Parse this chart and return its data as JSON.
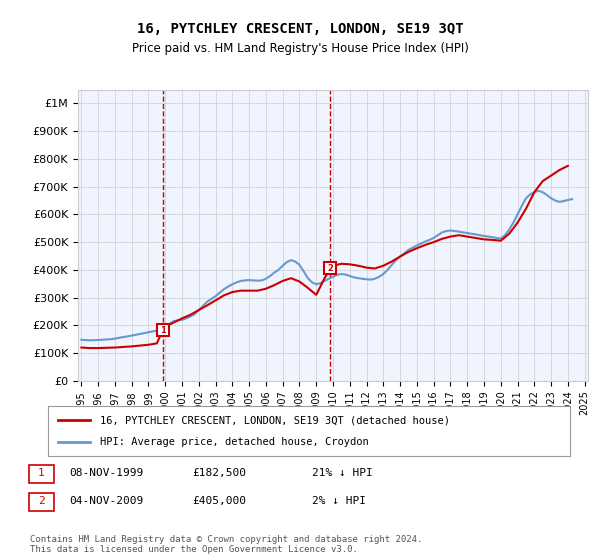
{
  "title": "16, PYTCHLEY CRESCENT, LONDON, SE19 3QT",
  "subtitle": "Price paid vs. HM Land Registry's House Price Index (HPI)",
  "xlabel": "",
  "ylabel": "",
  "ylim": [
    0,
    1050000
  ],
  "yticks": [
    0,
    100000,
    200000,
    300000,
    400000,
    500000,
    600000,
    700000,
    800000,
    900000,
    1000000
  ],
  "ytick_labels": [
    "£0",
    "£100K",
    "£200K",
    "£300K",
    "£400K",
    "£500K",
    "£600K",
    "£700K",
    "£800K",
    "£900K",
    "£1M"
  ],
  "sale_color": "#cc0000",
  "hpi_color": "#6699cc",
  "sale_marker_color": "#cc0000",
  "annotation_box_color": "#cc0000",
  "sale1_x": 1999.85,
  "sale1_y": 182500,
  "sale2_x": 2009.85,
  "sale2_y": 405000,
  "sale1_label": "1",
  "sale2_label": "2",
  "legend_sale_label": "16, PYTCHLEY CRESCENT, LONDON, SE19 3QT (detached house)",
  "legend_hpi_label": "HPI: Average price, detached house, Croydon",
  "table_row1": [
    "1",
    "08-NOV-1999",
    "£182,500",
    "21% ↓ HPI"
  ],
  "table_row2": [
    "2",
    "04-NOV-2009",
    "£405,000",
    "2% ↓ HPI"
  ],
  "footnote": "Contains HM Land Registry data © Crown copyright and database right 2024.\nThis data is licensed under the Open Government Licence v3.0.",
  "hpi_data_x": [
    1995,
    1995.25,
    1995.5,
    1995.75,
    1996,
    1996.25,
    1996.5,
    1996.75,
    1997,
    1997.25,
    1997.5,
    1997.75,
    1998,
    1998.25,
    1998.5,
    1998.75,
    1999,
    1999.25,
    1999.5,
    1999.75,
    2000,
    2000.25,
    2000.5,
    2000.75,
    2001,
    2001.25,
    2001.5,
    2001.75,
    2002,
    2002.25,
    2002.5,
    2002.75,
    2003,
    2003.25,
    2003.5,
    2003.75,
    2004,
    2004.25,
    2004.5,
    2004.75,
    2005,
    2005.25,
    2005.5,
    2005.75,
    2006,
    2006.25,
    2006.5,
    2006.75,
    2007,
    2007.25,
    2007.5,
    2007.75,
    2008,
    2008.25,
    2008.5,
    2008.75,
    2009,
    2009.25,
    2009.5,
    2009.75,
    2010,
    2010.25,
    2010.5,
    2010.75,
    2011,
    2011.25,
    2011.5,
    2011.75,
    2012,
    2012.25,
    2012.5,
    2012.75,
    2013,
    2013.25,
    2013.5,
    2013.75,
    2014,
    2014.25,
    2014.5,
    2014.75,
    2015,
    2015.25,
    2015.5,
    2015.75,
    2016,
    2016.25,
    2016.5,
    2016.75,
    2017,
    2017.25,
    2017.5,
    2017.75,
    2018,
    2018.25,
    2018.5,
    2018.75,
    2019,
    2019.25,
    2019.5,
    2019.75,
    2020,
    2020.25,
    2020.5,
    2020.75,
    2021,
    2021.25,
    2021.5,
    2021.75,
    2022,
    2022.25,
    2022.5,
    2022.75,
    2023,
    2023.25,
    2023.5,
    2023.75,
    2024,
    2024.25
  ],
  "hpi_data_y": [
    148000,
    147000,
    146000,
    146500,
    147000,
    148000,
    149000,
    150000,
    152000,
    155000,
    158000,
    160000,
    163000,
    166000,
    169000,
    172000,
    175000,
    178000,
    181000,
    185000,
    195000,
    205000,
    215000,
    218000,
    220000,
    225000,
    232000,
    240000,
    255000,
    270000,
    285000,
    295000,
    305000,
    318000,
    330000,
    340000,
    348000,
    355000,
    360000,
    362000,
    363000,
    362000,
    361000,
    362000,
    368000,
    378000,
    390000,
    400000,
    415000,
    428000,
    435000,
    430000,
    418000,
    395000,
    370000,
    355000,
    348000,
    352000,
    360000,
    368000,
    375000,
    382000,
    385000,
    383000,
    378000,
    373000,
    370000,
    368000,
    366000,
    365000,
    368000,
    375000,
    385000,
    400000,
    418000,
    435000,
    448000,
    460000,
    472000,
    480000,
    488000,
    495000,
    502000,
    508000,
    515000,
    525000,
    535000,
    540000,
    542000,
    540000,
    538000,
    535000,
    533000,
    530000,
    528000,
    525000,
    522000,
    520000,
    518000,
    515000,
    513000,
    525000,
    545000,
    570000,
    600000,
    630000,
    658000,
    672000,
    680000,
    685000,
    680000,
    670000,
    658000,
    650000,
    645000,
    648000,
    652000,
    655000
  ],
  "sale_data_x": [
    1995,
    1995.5,
    1996,
    1996.5,
    1997,
    1997.5,
    1998,
    1998.5,
    1999,
    1999.5,
    1999.85,
    2000,
    2000.5,
    2001,
    2001.5,
    2002,
    2002.5,
    2003,
    2003.5,
    2004,
    2004.5,
    2005,
    2005.5,
    2006,
    2006.5,
    2007,
    2007.5,
    2008,
    2008.5,
    2009,
    2009.5,
    2009.85,
    2010,
    2010.5,
    2011,
    2011.5,
    2012,
    2012.5,
    2013,
    2013.5,
    2014,
    2014.5,
    2015,
    2015.5,
    2016,
    2016.5,
    2017,
    2017.5,
    2018,
    2018.5,
    2019,
    2019.5,
    2020,
    2020.5,
    2021,
    2021.5,
    2022,
    2022.5,
    2023,
    2023.5,
    2024
  ],
  "sale_data_y": [
    120000,
    118000,
    118000,
    119000,
    120000,
    122000,
    124000,
    127000,
    130000,
    135000,
    182500,
    195000,
    210000,
    225000,
    238000,
    255000,
    272000,
    290000,
    308000,
    320000,
    325000,
    325000,
    325000,
    332000,
    345000,
    360000,
    370000,
    358000,
    335000,
    310000,
    370000,
    405000,
    415000,
    422000,
    420000,
    415000,
    408000,
    405000,
    415000,
    430000,
    448000,
    465000,
    478000,
    490000,
    500000,
    512000,
    520000,
    525000,
    520000,
    515000,
    510000,
    508000,
    505000,
    530000,
    570000,
    620000,
    680000,
    720000,
    740000,
    760000,
    775000
  ],
  "bg_color": "#ffffff",
  "plot_bg_color": "#f0f4ff",
  "grid_color": "#cccccc",
  "xtick_years": [
    1995,
    1996,
    1997,
    1998,
    1999,
    2000,
    2001,
    2002,
    2003,
    2004,
    2005,
    2006,
    2007,
    2008,
    2009,
    2010,
    2011,
    2012,
    2013,
    2014,
    2015,
    2016,
    2017,
    2018,
    2019,
    2020,
    2021,
    2022,
    2023,
    2024,
    2025
  ]
}
